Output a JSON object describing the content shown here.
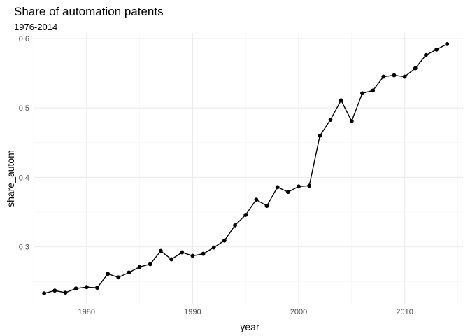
{
  "chart_data": {
    "type": "line",
    "title": "Share of automation patents",
    "subtitle": "1976-2014",
    "xlabel": "year",
    "ylabel": "share_autom",
    "xlim": [
      1975,
      2015.5
    ],
    "ylim": [
      0.218,
      0.608
    ],
    "x_ticks": [
      1980,
      1990,
      2000,
      2010
    ],
    "y_ticks": [
      0.3,
      0.4,
      0.5,
      0.6
    ],
    "x_tick_labels": [
      "1980",
      "1990",
      "2000",
      "2010"
    ],
    "y_tick_labels": [
      "0.3",
      "0.4",
      "0.5",
      "0.6"
    ],
    "grid": true,
    "legend": "none",
    "series": [
      {
        "x": [
          1976,
          1977,
          1978,
          1979,
          1980,
          1981,
          1982,
          1983,
          1984,
          1985,
          1986,
          1987,
          1988,
          1989,
          1990,
          1991,
          1992,
          1993,
          1994,
          1995,
          1996,
          1997,
          1998,
          1999,
          2000,
          2001,
          2002,
          2003,
          2004,
          2005,
          2006,
          2007,
          2008,
          2009,
          2010,
          2011,
          2012,
          2013,
          2014
        ],
        "y": [
          0.233,
          0.237,
          0.234,
          0.24,
          0.242,
          0.241,
          0.261,
          0.256,
          0.263,
          0.271,
          0.275,
          0.294,
          0.282,
          0.292,
          0.287,
          0.29,
          0.299,
          0.309,
          0.331,
          0.346,
          0.368,
          0.359,
          0.386,
          0.379,
          0.387,
          0.388,
          0.46,
          0.483,
          0.511,
          0.481,
          0.521,
          0.525,
          0.545,
          0.547,
          0.545,
          0.557,
          0.576,
          0.584,
          0.592
        ]
      }
    ]
  }
}
